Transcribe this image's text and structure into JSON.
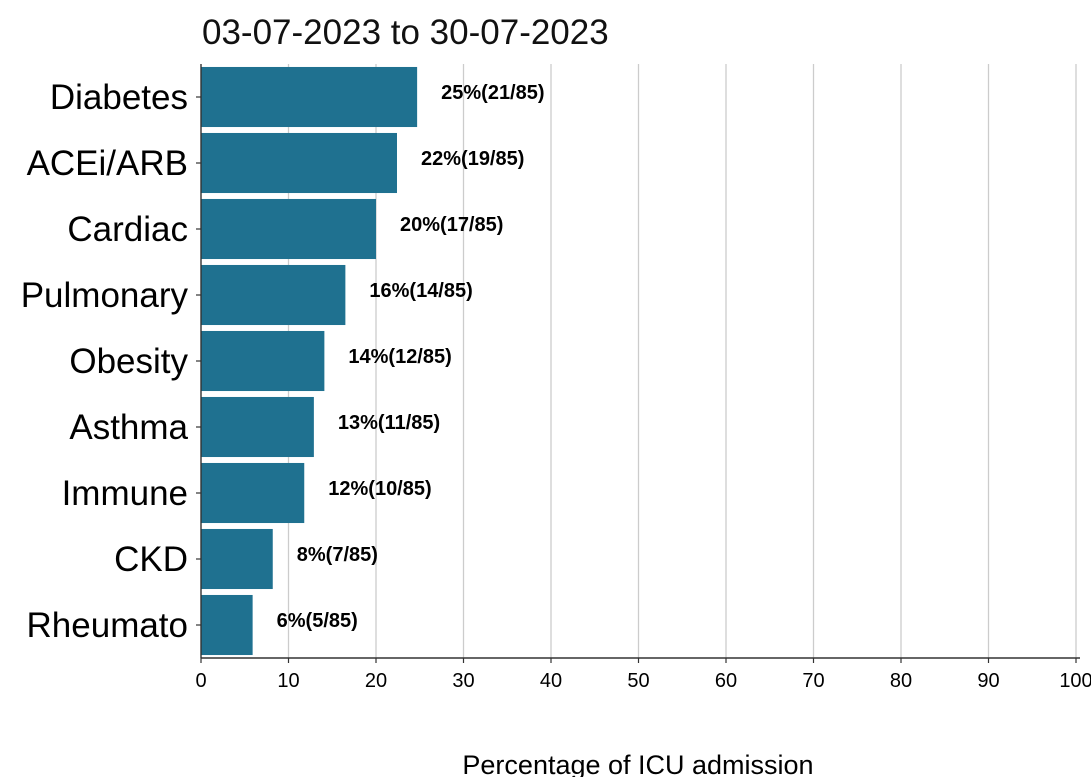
{
  "chart_data": {
    "type": "bar",
    "orientation": "horizontal",
    "title": "03-07-2023 to 30-07-2023",
    "xlabel": "Percentage of ICU admission",
    "ylabel": "",
    "xlim": [
      0,
      100
    ],
    "xticks": [
      "0",
      "10",
      "20",
      "30",
      "40",
      "50",
      "60",
      "70",
      "80",
      "90",
      "100"
    ],
    "grid": "vertical",
    "bar_color": "#1f7190",
    "categories": [
      "Diabetes",
      "ACEi/ARB",
      "Cardiac",
      "Pulmonary",
      "Obesity",
      "Asthma",
      "Immune",
      "CKD",
      "Rheumato"
    ],
    "values": [
      24.7,
      22.4,
      20.0,
      16.5,
      14.1,
      12.9,
      11.8,
      8.2,
      5.9
    ],
    "labels": [
      "25%(21/85)",
      "22%(19/85)",
      "20%(17/85)",
      "16%(14/85)",
      "14%(12/85)",
      "13%(11/85)",
      "12%(10/85)",
      "8%(7/85)",
      "6%(5/85)"
    ]
  }
}
